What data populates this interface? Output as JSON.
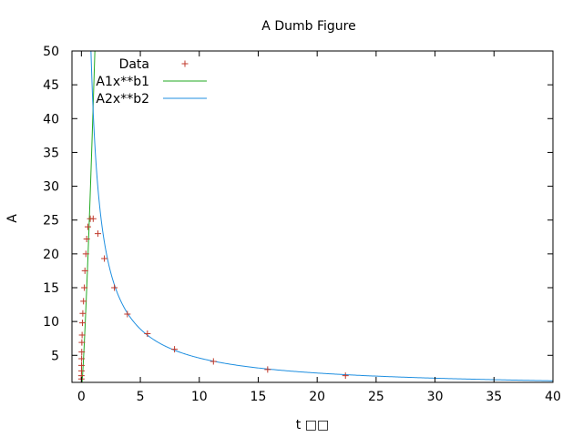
{
  "chart_data": {
    "type": "scatter",
    "title": "A Dumb Figure",
    "xlabel": "t □□",
    "ylabel": "A",
    "xlim": [
      -0.8,
      40
    ],
    "ylim": [
      1.0,
      50
    ],
    "xticks": [
      0,
      5,
      10,
      15,
      20,
      25,
      30,
      35,
      40
    ],
    "yticks": [
      5,
      10,
      15,
      20,
      25,
      30,
      35,
      40,
      45,
      50
    ],
    "grid": false,
    "legend_position": "top-left",
    "series": [
      {
        "name": "Data",
        "kind": "points",
        "color": "#c0392b",
        "points": [
          [
            0.0,
            1.5
          ],
          [
            0.0,
            2.0
          ],
          [
            0.01,
            2.7
          ],
          [
            0.01,
            3.5
          ],
          [
            0.02,
            4.5
          ],
          [
            0.03,
            5.5
          ],
          [
            0.04,
            6.9
          ],
          [
            0.06,
            8.0
          ],
          [
            0.09,
            9.8
          ],
          [
            0.12,
            11.2
          ],
          [
            0.18,
            13.0
          ],
          [
            0.25,
            15.0
          ],
          [
            0.3,
            17.5
          ],
          [
            0.38,
            20.0
          ],
          [
            0.45,
            22.2
          ],
          [
            0.55,
            24.0
          ],
          [
            0.75,
            25.2
          ],
          [
            1.0,
            25.2
          ],
          [
            1.4,
            23.0
          ],
          [
            1.95,
            19.3
          ],
          [
            2.8,
            15.0
          ],
          [
            3.9,
            11.1
          ],
          [
            5.6,
            8.2
          ],
          [
            7.9,
            5.9
          ],
          [
            11.2,
            4.1
          ],
          [
            15.8,
            2.9
          ],
          [
            22.4,
            2.0
          ]
        ]
      },
      {
        "name": "A1x**b1",
        "kind": "power",
        "color": "#22aa22",
        "A": 42.0,
        "b": 1.3
      },
      {
        "name": "A2x**b2",
        "kind": "power",
        "color": "#1f8fe0",
        "A": 41.0,
        "b": -0.95
      }
    ]
  }
}
